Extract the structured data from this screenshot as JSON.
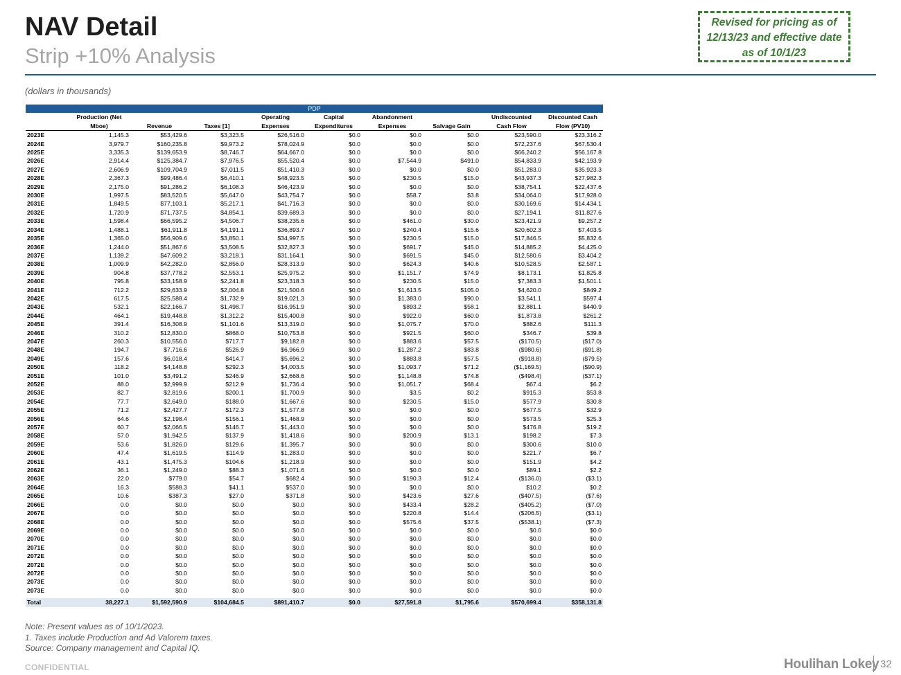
{
  "header": {
    "title": "NAV Detail",
    "subtitle": "Strip +10% Analysis",
    "revised_note": "Revised for pricing as of 12/13/23 and effective date as of 10/1/23",
    "units_note": "(dollars in thousands)"
  },
  "table": {
    "section_label": "PDP",
    "columns": [
      {
        "line1": "Production (Net",
        "line2": "Mboe)"
      },
      {
        "line1": "",
        "line2": "Revenue"
      },
      {
        "line1": "",
        "line2": "Taxes [1]"
      },
      {
        "line1": "Operating",
        "line2": "Expenses"
      },
      {
        "line1": "Capital",
        "line2": "Expenditures"
      },
      {
        "line1": "Abandonment",
        "line2": "Expenses"
      },
      {
        "line1": "",
        "line2": "Salvage Gain"
      },
      {
        "line1": "Undiscounted",
        "line2": "Cash Flow"
      },
      {
        "line1": "Discounted Cash",
        "line2": "Flow (PV10)"
      }
    ],
    "rows": [
      [
        "2023E",
        "1,145.3",
        "$53,429.6",
        "$3,323.5",
        "$26,516.0",
        "$0.0",
        "$0.0",
        "$0.0",
        "$23,590.0",
        "$23,316.2"
      ],
      [
        "2024E",
        "3,979.7",
        "$160,235.8",
        "$9,973.2",
        "$78,024.9",
        "$0.0",
        "$0.0",
        "$0.0",
        "$72,237.6",
        "$67,530.4"
      ],
      [
        "2025E",
        "3,335.3",
        "$139,653.9",
        "$8,746.7",
        "$64,667.0",
        "$0.0",
        "$0.0",
        "$0.0",
        "$66,240.2",
        "$56,167.8"
      ],
      [
        "2026E",
        "2,914.4",
        "$125,384.7",
        "$7,976.5",
        "$55,520.4",
        "$0.0",
        "$7,544.9",
        "$491.0",
        "$54,833.9",
        "$42,193.9"
      ],
      [
        "2027E",
        "2,606.9",
        "$109,704.9",
        "$7,011.5",
        "$51,410.3",
        "$0.0",
        "$0.0",
        "$0.0",
        "$51,283.0",
        "$35,923.3"
      ],
      [
        "2028E",
        "2,367.3",
        "$99,486.4",
        "$6,410.1",
        "$48,923.5",
        "$0.0",
        "$230.5",
        "$15.0",
        "$43,937.3",
        "$27,982.3"
      ],
      [
        "2029E",
        "2,175.0",
        "$91,286.2",
        "$6,108.3",
        "$46,423.9",
        "$0.0",
        "$0.0",
        "$0.0",
        "$38,754.1",
        "$22,437.6"
      ],
      [
        "2030E",
        "1,997.5",
        "$83,520.5",
        "$5,647.0",
        "$43,754.7",
        "$0.0",
        "$58.7",
        "$3.8",
        "$34,064.0",
        "$17,928.0"
      ],
      [
        "2031E",
        "1,849.5",
        "$77,103.1",
        "$5,217.1",
        "$41,716.3",
        "$0.0",
        "$0.0",
        "$0.0",
        "$30,169.6",
        "$14,434.1"
      ],
      [
        "2032E",
        "1,720.9",
        "$71,737.5",
        "$4,854.1",
        "$39,689.3",
        "$0.0",
        "$0.0",
        "$0.0",
        "$27,194.1",
        "$11,827.6"
      ],
      [
        "2033E",
        "1,598.4",
        "$66,595.2",
        "$4,506.7",
        "$38,235.6",
        "$0.0",
        "$461.0",
        "$30.0",
        "$23,421.9",
        "$9,257.2"
      ],
      [
        "2034E",
        "1,488.1",
        "$61,911.8",
        "$4,191.1",
        "$36,893.7",
        "$0.0",
        "$240.4",
        "$15.6",
        "$20,602.3",
        "$7,403.5"
      ],
      [
        "2035E",
        "1,365.0",
        "$56,909.6",
        "$3,850.1",
        "$34,997.5",
        "$0.0",
        "$230.5",
        "$15.0",
        "$17,846.5",
        "$5,832.6"
      ],
      [
        "2036E",
        "1,244.0",
        "$51,867.6",
        "$3,508.5",
        "$32,827.3",
        "$0.0",
        "$691.7",
        "$45.0",
        "$14,885.2",
        "$4,425.0"
      ],
      [
        "2037E",
        "1,139.2",
        "$47,609.2",
        "$3,218.1",
        "$31,164.1",
        "$0.0",
        "$691.5",
        "$45.0",
        "$12,580.6",
        "$3,404.2"
      ],
      [
        "2038E",
        "1,009.9",
        "$42,282.0",
        "$2,856.0",
        "$28,313.9",
        "$0.0",
        "$624.3",
        "$40.6",
        "$10,528.5",
        "$2,587.1"
      ],
      [
        "2039E",
        "904.8",
        "$37,778.2",
        "$2,553.1",
        "$25,975.2",
        "$0.0",
        "$1,151.7",
        "$74.9",
        "$8,173.1",
        "$1,825.8"
      ],
      [
        "2040E",
        "795.8",
        "$33,158.9",
        "$2,241.8",
        "$23,318.3",
        "$0.0",
        "$230.5",
        "$15.0",
        "$7,383.3",
        "$1,501.1"
      ],
      [
        "2041E",
        "712.2",
        "$29,633.9",
        "$2,004.8",
        "$21,500.6",
        "$0.0",
        "$1,613.5",
        "$105.0",
        "$4,620.0",
        "$849.2"
      ],
      [
        "2042E",
        "617.5",
        "$25,588.4",
        "$1,732.9",
        "$19,021.3",
        "$0.0",
        "$1,383.0",
        "$90.0",
        "$3,541.1",
        "$597.4"
      ],
      [
        "2043E",
        "532.1",
        "$22,166.7",
        "$1,498.7",
        "$16,951.9",
        "$0.0",
        "$893.2",
        "$58.1",
        "$2,881.1",
        "$440.9"
      ],
      [
        "2044E",
        "464.1",
        "$19,448.8",
        "$1,312.2",
        "$15,400.8",
        "$0.0",
        "$922.0",
        "$60.0",
        "$1,873.8",
        "$261.2"
      ],
      [
        "2045E",
        "391.4",
        "$16,308.9",
        "$1,101.6",
        "$13,319.0",
        "$0.0",
        "$1,075.7",
        "$70.0",
        "$882.6",
        "$111.3"
      ],
      [
        "2046E",
        "310.2",
        "$12,830.0",
        "$868.0",
        "$10,753.8",
        "$0.0",
        "$921.5",
        "$60.0",
        "$346.7",
        "$39.8"
      ],
      [
        "2047E",
        "260.3",
        "$10,556.0",
        "$717.7",
        "$9,182.8",
        "$0.0",
        "$883.6",
        "$57.5",
        "($170.5)",
        "($17.0)"
      ],
      [
        "2048E",
        "194.7",
        "$7,716.6",
        "$526.9",
        "$6,966.9",
        "$0.0",
        "$1,287.2",
        "$83.8",
        "($980.6)",
        "($91.8)"
      ],
      [
        "2049E",
        "157.6",
        "$6,018.4",
        "$414.7",
        "$5,696.2",
        "$0.0",
        "$883.8",
        "$57.5",
        "($918.8)",
        "($79.5)"
      ],
      [
        "2050E",
        "118.2",
        "$4,148.8",
        "$292.3",
        "$4,003.5",
        "$0.0",
        "$1,093.7",
        "$71.2",
        "($1,169.5)",
        "($90.9)"
      ],
      [
        "2051E",
        "101.0",
        "$3,491.2",
        "$246.9",
        "$2,668.6",
        "$0.0",
        "$1,148.8",
        "$74.8",
        "($498.4)",
        "($37.1)"
      ],
      [
        "2052E",
        "88.0",
        "$2,999.9",
        "$212.9",
        "$1,736.4",
        "$0.0",
        "$1,051.7",
        "$68.4",
        "$67.4",
        "$6.2"
      ],
      [
        "2053E",
        "82.7",
        "$2,819.6",
        "$200.1",
        "$1,700.9",
        "$0.0",
        "$3.5",
        "$0.2",
        "$915.3",
        "$53.8"
      ],
      [
        "2054E",
        "77.7",
        "$2,649.0",
        "$188.0",
        "$1,667.6",
        "$0.0",
        "$230.5",
        "$15.0",
        "$577.9",
        "$30.8"
      ],
      [
        "2055E",
        "71.2",
        "$2,427.7",
        "$172.3",
        "$1,577.8",
        "$0.0",
        "$0.0",
        "$0.0",
        "$677.5",
        "$32.9"
      ],
      [
        "2056E",
        "64.6",
        "$2,198.4",
        "$156.1",
        "$1,468.9",
        "$0.0",
        "$0.0",
        "$0.0",
        "$573.5",
        "$25.3"
      ],
      [
        "2057E",
        "60.7",
        "$2,066.5",
        "$146.7",
        "$1,443.0",
        "$0.0",
        "$0.0",
        "$0.0",
        "$476.8",
        "$19.2"
      ],
      [
        "2058E",
        "57.0",
        "$1,942.5",
        "$137.9",
        "$1,418.6",
        "$0.0",
        "$200.9",
        "$13.1",
        "$198.2",
        "$7.3"
      ],
      [
        "2059E",
        "53.6",
        "$1,826.0",
        "$129.6",
        "$1,395.7",
        "$0.0",
        "$0.0",
        "$0.0",
        "$300.6",
        "$10.0"
      ],
      [
        "2060E",
        "47.4",
        "$1,619.5",
        "$114.9",
        "$1,283.0",
        "$0.0",
        "$0.0",
        "$0.0",
        "$221.7",
        "$6.7"
      ],
      [
        "2061E",
        "43.1",
        "$1,475.3",
        "$104.6",
        "$1,218.9",
        "$0.0",
        "$0.0",
        "$0.0",
        "$151.9",
        "$4.2"
      ],
      [
        "2062E",
        "36.1",
        "$1,249.0",
        "$88.3",
        "$1,071.6",
        "$0.0",
        "$0.0",
        "$0.0",
        "$89.1",
        "$2.2"
      ],
      [
        "2063E",
        "22.0",
        "$779.0",
        "$54.7",
        "$682.4",
        "$0.0",
        "$190.3",
        "$12.4",
        "($136.0)",
        "($3.1)"
      ],
      [
        "2064E",
        "16.3",
        "$588.3",
        "$41.1",
        "$537.0",
        "$0.0",
        "$0.0",
        "$0.0",
        "$10.2",
        "$0.2"
      ],
      [
        "2065E",
        "10.6",
        "$387.3",
        "$27.0",
        "$371.8",
        "$0.0",
        "$423.6",
        "$27.6",
        "($407.5)",
        "($7.6)"
      ],
      [
        "2066E",
        "0.0",
        "$0.0",
        "$0.0",
        "$0.0",
        "$0.0",
        "$433.4",
        "$28.2",
        "($405.2)",
        "($7.0)"
      ],
      [
        "2067E",
        "0.0",
        "$0.0",
        "$0.0",
        "$0.0",
        "$0.0",
        "$220.8",
        "$14.4",
        "($206.5)",
        "($3.1)"
      ],
      [
        "2068E",
        "0.0",
        "$0.0",
        "$0.0",
        "$0.0",
        "$0.0",
        "$575.6",
        "$37.5",
        "($538.1)",
        "($7.3)"
      ],
      [
        "2069E",
        "0.0",
        "$0.0",
        "$0.0",
        "$0.0",
        "$0.0",
        "$0.0",
        "$0.0",
        "$0.0",
        "$0.0"
      ],
      [
        "2070E",
        "0.0",
        "$0.0",
        "$0.0",
        "$0.0",
        "$0.0",
        "$0.0",
        "$0.0",
        "$0.0",
        "$0.0"
      ],
      [
        "2071E",
        "0.0",
        "$0.0",
        "$0.0",
        "$0.0",
        "$0.0",
        "$0.0",
        "$0.0",
        "$0.0",
        "$0.0"
      ],
      [
        "2072E",
        "0.0",
        "$0.0",
        "$0.0",
        "$0.0",
        "$0.0",
        "$0.0",
        "$0.0",
        "$0.0",
        "$0.0"
      ],
      [
        "2072E",
        "0.0",
        "$0.0",
        "$0.0",
        "$0.0",
        "$0.0",
        "$0.0",
        "$0.0",
        "$0.0",
        "$0.0"
      ],
      [
        "2072E",
        "0.0",
        "$0.0",
        "$0.0",
        "$0.0",
        "$0.0",
        "$0.0",
        "$0.0",
        "$0.0",
        "$0.0"
      ],
      [
        "2073E",
        "0.0",
        "$0.0",
        "$0.0",
        "$0.0",
        "$0.0",
        "$0.0",
        "$0.0",
        "$0.0",
        "$0.0"
      ],
      [
        "2073E",
        "0.0",
        "$0.0",
        "$0.0",
        "$0.0",
        "$0.0",
        "$0.0",
        "$0.0",
        "$0.0",
        "$0.0"
      ]
    ],
    "total": [
      "Total",
      "38,227.1",
      "$1,592,590.9",
      "$104,684.5",
      "$891,410.7",
      "$0.0",
      "$27,591.8",
      "$1,795.6",
      "$570,699.4",
      "$358,131.8"
    ]
  },
  "footer": {
    "note": "Note: Present values as of 10/1/2023.",
    "footnote": "1. Taxes include Production and Ad Valorem taxes.",
    "source": "Source: Company management and Capital IQ.",
    "confidential": "CONFIDENTIAL",
    "logo": "Houlihan Lokey",
    "page_number": "32"
  }
}
